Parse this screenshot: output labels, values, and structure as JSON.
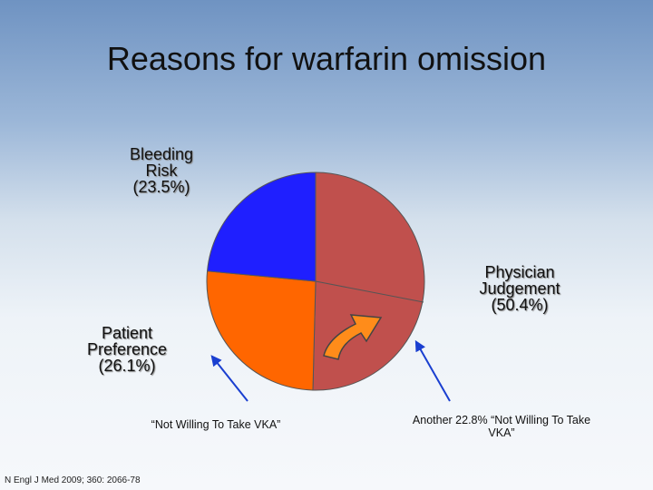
{
  "chart_data": {
    "type": "pie",
    "title": "Reasons for warfarin omission",
    "categories": [
      "Physician Judgement",
      "Patient Preference",
      "Bleeding Risk"
    ],
    "values": [
      50.4,
      26.1,
      23.5
    ],
    "value_labels": [
      "(50.4%)",
      "(26.1%)",
      "(23.5%)"
    ],
    "colors": [
      "#c0504d",
      "#ff6600",
      "#1f1fff"
    ],
    "annotations": [
      "“Not Willing To Take VKA”",
      "Another 22.8% “Not Willing To Take VKA”"
    ],
    "source": "N Engl J Med 2009; 360: 2066-78"
  }
}
